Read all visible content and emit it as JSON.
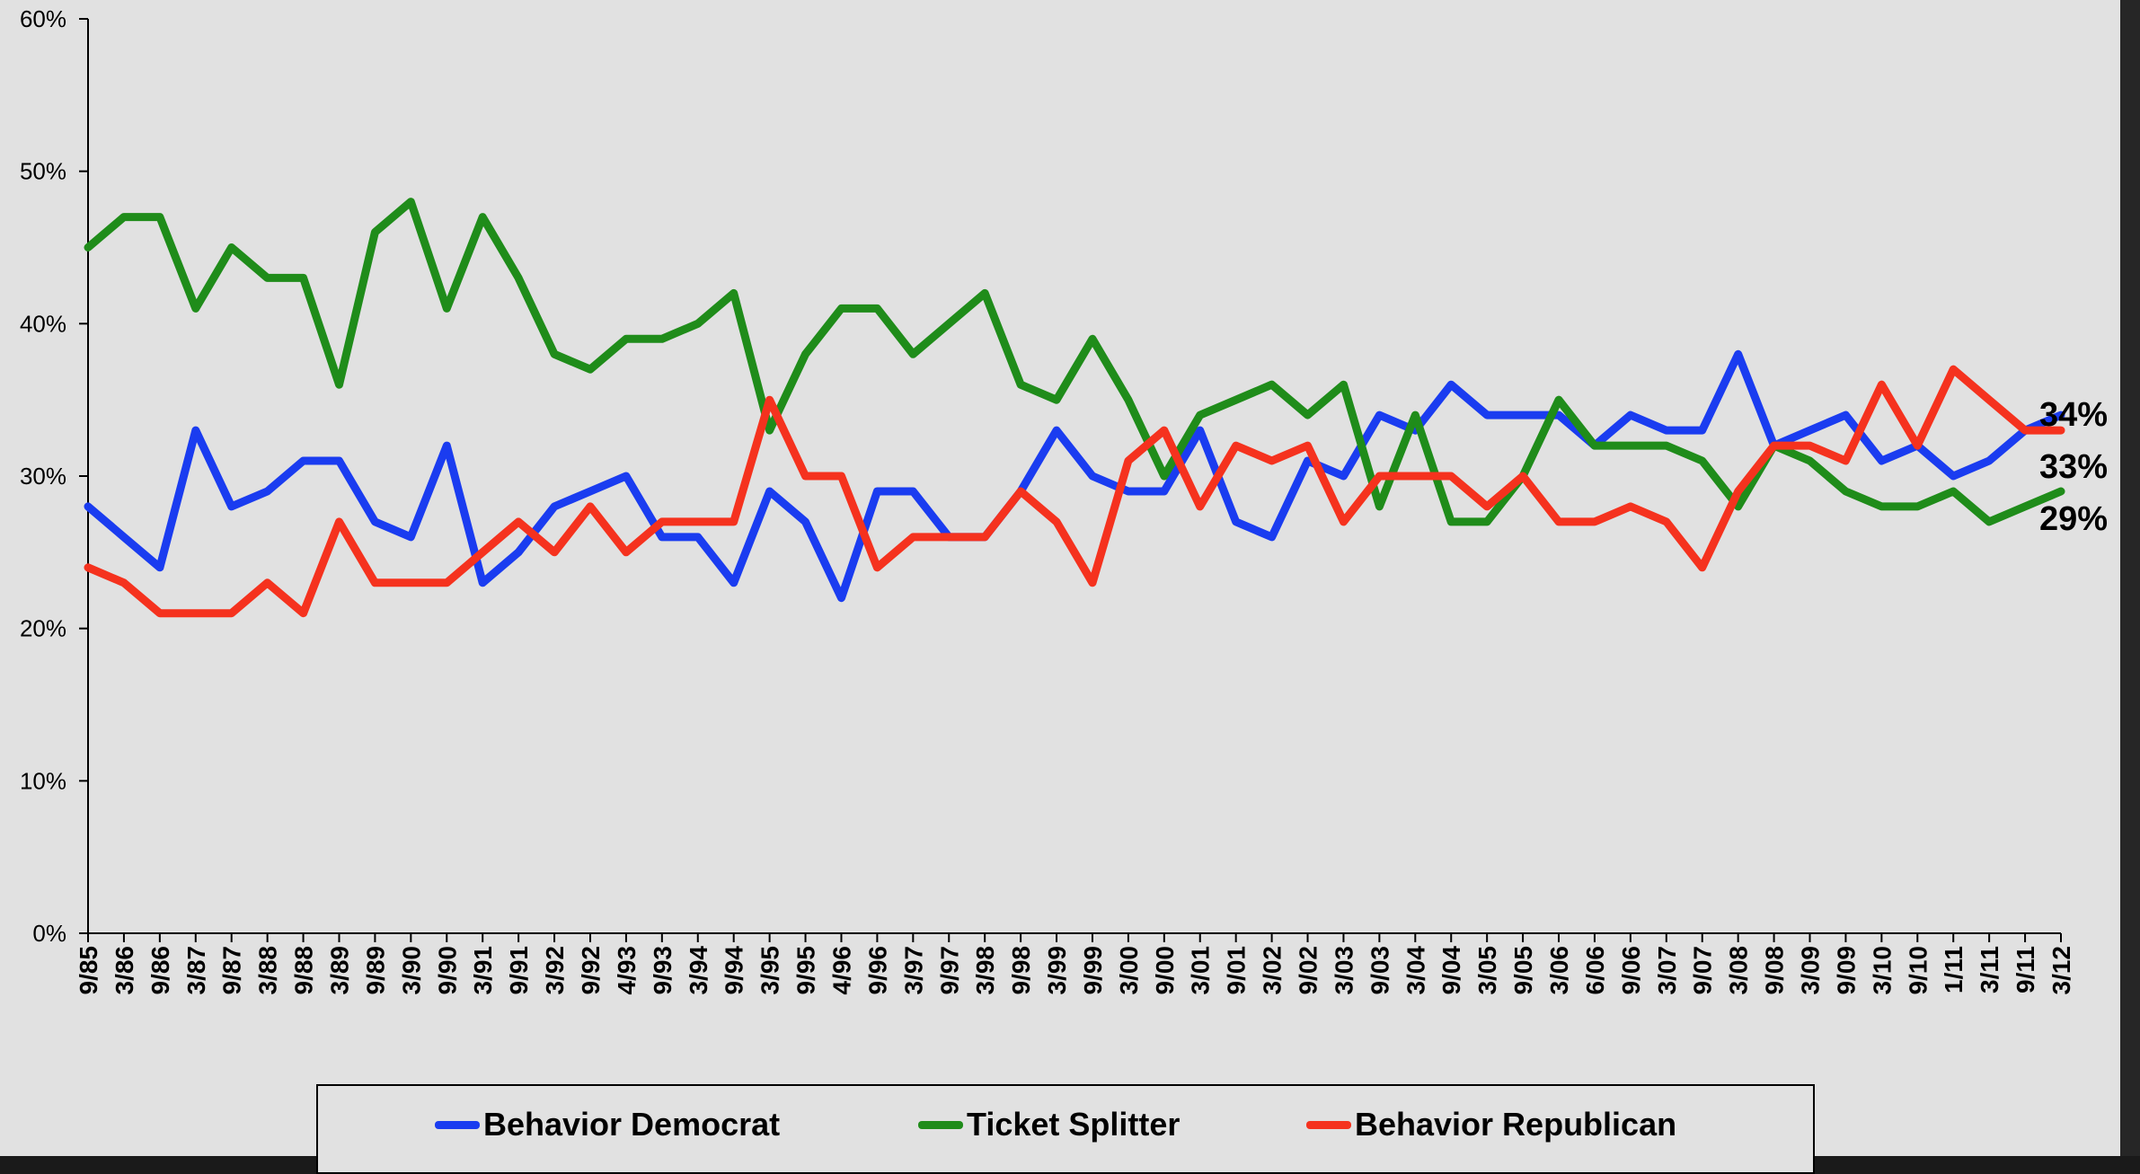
{
  "chart_data": {
    "type": "line",
    "title": "",
    "xlabel": "",
    "ylabel": "",
    "ylim": [
      0,
      60
    ],
    "yticks": [
      "0%",
      "10%",
      "20%",
      "30%",
      "40%",
      "50%",
      "60%"
    ],
    "grid": false,
    "legend_position": "bottom",
    "categories": [
      "9/85",
      "3/86",
      "9/86",
      "3/87",
      "9/87",
      "3/88",
      "9/88",
      "3/89",
      "9/89",
      "3/90",
      "9/90",
      "3/91",
      "9/91",
      "3/92",
      "9/92",
      "4/93",
      "9/93",
      "3/94",
      "9/94",
      "3/95",
      "9/95",
      "4/96",
      "9/96",
      "3/97",
      "9/97",
      "3/98",
      "9/98",
      "3/99",
      "9/99",
      "3/00",
      "9/00",
      "3/01",
      "9/01",
      "3/02",
      "9/02",
      "3/03",
      "9/03",
      "3/04",
      "9/04",
      "3/05",
      "9/05",
      "3/06",
      "6/06",
      "9/06",
      "3/07",
      "9/07",
      "3/08",
      "9/08",
      "3/09",
      "9/09",
      "3/10",
      "9/10",
      "1/11",
      "3/11",
      "9/11",
      "3/12"
    ],
    "series": [
      {
        "name": "Behavior Democrat",
        "color": "#1a3cf0",
        "end_label": "34%",
        "values": [
          28,
          26,
          24,
          33,
          28,
          29,
          31,
          31,
          27,
          26,
          32,
          23,
          25,
          28,
          29,
          30,
          26,
          26,
          23,
          29,
          27,
          22,
          29,
          29,
          26,
          26,
          29,
          33,
          30,
          29,
          29,
          33,
          27,
          26,
          31,
          30,
          34,
          33,
          36,
          34,
          34,
          34,
          32,
          34,
          33,
          33,
          38,
          32,
          33,
          34,
          31,
          32,
          30,
          31,
          33,
          34
        ]
      },
      {
        "name": "Ticket Splitter",
        "color": "#1f8c1a",
        "end_label": "29%",
        "values": [
          45,
          47,
          47,
          41,
          45,
          43,
          43,
          36,
          46,
          48,
          41,
          47,
          43,
          38,
          37,
          39,
          39,
          40,
          42,
          33,
          38,
          41,
          41,
          38,
          40,
          42,
          36,
          35,
          39,
          35,
          30,
          34,
          35,
          36,
          34,
          36,
          28,
          34,
          27,
          27,
          30,
          35,
          32,
          32,
          32,
          31,
          28,
          32,
          31,
          29,
          28,
          28,
          29,
          27,
          28,
          29
        ]
      },
      {
        "name": "Behavior Republican",
        "color": "#f5321e",
        "end_label": "33%",
        "values": [
          24,
          23,
          21,
          21,
          21,
          23,
          21,
          27,
          23,
          23,
          23,
          25,
          27,
          25,
          28,
          25,
          27,
          27,
          27,
          35,
          30,
          30,
          24,
          26,
          26,
          26,
          29,
          27,
          23,
          31,
          33,
          28,
          32,
          31,
          32,
          27,
          30,
          30,
          30,
          28,
          30,
          27,
          27,
          28,
          27,
          24,
          29,
          32,
          32,
          31,
          36,
          32,
          37,
          35,
          33,
          33
        ]
      }
    ]
  }
}
